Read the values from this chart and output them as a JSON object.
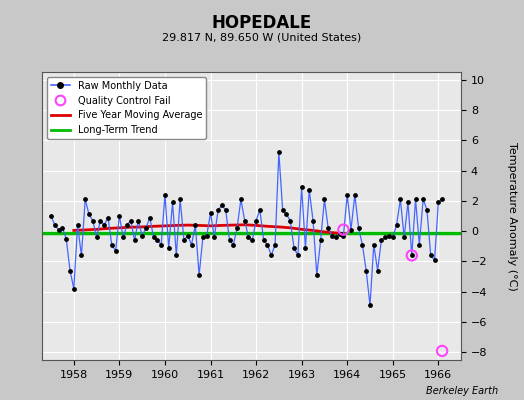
{
  "title": "HOPEDALE",
  "subtitle": "29.817 N, 89.650 W (United States)",
  "ylabel": "Temperature Anomaly (°C)",
  "credit": "Berkeley Earth",
  "ylim": [
    -8.5,
    10.5
  ],
  "yticks": [
    -8,
    -6,
    -4,
    -2,
    0,
    2,
    4,
    6,
    8,
    10
  ],
  "xlim": [
    1957.3,
    1966.5
  ],
  "bg_color": "#c8c8c8",
  "plot_bg_color": "#e8e8e8",
  "raw_color": "#4466ff",
  "dot_color": "#000000",
  "ma_color": "#dd0000",
  "trend_color": "#00bb00",
  "qc_color": "#ff44ff",
  "monthly_data": [
    [
      1957.5,
      1.0
    ],
    [
      1957.583,
      0.4
    ],
    [
      1957.667,
      0.1
    ],
    [
      1957.75,
      0.2
    ],
    [
      1957.833,
      -0.5
    ],
    [
      1957.917,
      -2.6
    ],
    [
      1958.0,
      -3.8
    ],
    [
      1958.083,
      0.4
    ],
    [
      1958.167,
      -1.6
    ],
    [
      1958.25,
      2.1
    ],
    [
      1958.333,
      1.1
    ],
    [
      1958.417,
      0.7
    ],
    [
      1958.5,
      -0.4
    ],
    [
      1958.583,
      0.7
    ],
    [
      1958.667,
      0.4
    ],
    [
      1958.75,
      0.9
    ],
    [
      1958.833,
      -0.9
    ],
    [
      1958.917,
      -1.3
    ],
    [
      1959.0,
      1.0
    ],
    [
      1959.083,
      -0.4
    ],
    [
      1959.167,
      0.4
    ],
    [
      1959.25,
      0.7
    ],
    [
      1959.333,
      -0.6
    ],
    [
      1959.417,
      0.7
    ],
    [
      1959.5,
      -0.3
    ],
    [
      1959.583,
      0.2
    ],
    [
      1959.667,
      0.9
    ],
    [
      1959.75,
      -0.4
    ],
    [
      1959.833,
      -0.6
    ],
    [
      1959.917,
      -0.9
    ],
    [
      1960.0,
      2.4
    ],
    [
      1960.083,
      -1.1
    ],
    [
      1960.167,
      1.9
    ],
    [
      1960.25,
      -1.6
    ],
    [
      1960.333,
      2.1
    ],
    [
      1960.417,
      -0.6
    ],
    [
      1960.5,
      -0.3
    ],
    [
      1960.583,
      -0.9
    ],
    [
      1960.667,
      0.4
    ],
    [
      1960.75,
      -2.9
    ],
    [
      1960.833,
      -0.4
    ],
    [
      1960.917,
      -0.3
    ],
    [
      1961.0,
      1.2
    ],
    [
      1961.083,
      -0.4
    ],
    [
      1961.167,
      1.4
    ],
    [
      1961.25,
      1.7
    ],
    [
      1961.333,
      1.4
    ],
    [
      1961.417,
      -0.6
    ],
    [
      1961.5,
      -0.9
    ],
    [
      1961.583,
      0.2
    ],
    [
      1961.667,
      2.1
    ],
    [
      1961.75,
      0.7
    ],
    [
      1961.833,
      -0.4
    ],
    [
      1961.917,
      -0.6
    ],
    [
      1962.0,
      0.7
    ],
    [
      1962.083,
      1.4
    ],
    [
      1962.167,
      -0.6
    ],
    [
      1962.25,
      -0.9
    ],
    [
      1962.333,
      -1.6
    ],
    [
      1962.417,
      -0.9
    ],
    [
      1962.5,
      5.2
    ],
    [
      1962.583,
      1.4
    ],
    [
      1962.667,
      1.1
    ],
    [
      1962.75,
      0.7
    ],
    [
      1962.833,
      -1.1
    ],
    [
      1962.917,
      -1.6
    ],
    [
      1963.0,
      2.9
    ],
    [
      1963.083,
      -1.1
    ],
    [
      1963.167,
      2.7
    ],
    [
      1963.25,
      0.7
    ],
    [
      1963.333,
      -2.9
    ],
    [
      1963.417,
      -0.6
    ],
    [
      1963.5,
      2.1
    ],
    [
      1963.583,
      0.2
    ],
    [
      1963.667,
      -0.3
    ],
    [
      1963.75,
      -0.4
    ],
    [
      1963.833,
      -0.2
    ],
    [
      1963.917,
      -0.3
    ],
    [
      1964.0,
      2.4
    ],
    [
      1964.083,
      0.1
    ],
    [
      1964.167,
      2.4
    ],
    [
      1964.25,
      0.2
    ],
    [
      1964.333,
      -0.9
    ],
    [
      1964.417,
      -2.6
    ],
    [
      1964.5,
      -4.9
    ],
    [
      1964.583,
      -0.9
    ],
    [
      1964.667,
      -2.6
    ],
    [
      1964.75,
      -0.6
    ],
    [
      1964.833,
      -0.4
    ],
    [
      1964.917,
      -0.3
    ],
    [
      1965.0,
      -0.4
    ],
    [
      1965.083,
      0.4
    ],
    [
      1965.167,
      2.1
    ],
    [
      1965.25,
      -0.4
    ],
    [
      1965.333,
      1.9
    ],
    [
      1965.417,
      -1.6
    ],
    [
      1965.5,
      2.1
    ],
    [
      1965.583,
      -0.9
    ],
    [
      1965.667,
      2.1
    ],
    [
      1965.75,
      1.4
    ],
    [
      1965.833,
      -1.6
    ],
    [
      1965.917,
      -1.9
    ],
    [
      1966.0,
      1.9
    ],
    [
      1966.083,
      2.1
    ]
  ],
  "qc_fail_points": [
    [
      1963.917,
      0.1
    ],
    [
      1965.417,
      -1.6
    ],
    [
      1966.083,
      -7.9
    ]
  ],
  "moving_avg_x": [
    1958.0,
    1958.25,
    1958.5,
    1958.75,
    1959.0,
    1959.25,
    1959.5,
    1959.75,
    1960.0,
    1960.25,
    1960.5,
    1960.75,
    1961.0,
    1961.25,
    1961.5,
    1961.75,
    1962.0,
    1962.25,
    1962.5,
    1962.75,
    1963.0,
    1963.25,
    1963.5,
    1963.75,
    1963.917
  ],
  "moving_avg_y": [
    0.05,
    0.08,
    0.12,
    0.18,
    0.22,
    0.26,
    0.28,
    0.32,
    0.35,
    0.38,
    0.4,
    0.38,
    0.35,
    0.38,
    0.4,
    0.42,
    0.38,
    0.32,
    0.28,
    0.22,
    0.12,
    0.05,
    -0.05,
    -0.12,
    -0.15
  ],
  "trend_y": -0.12,
  "xticks": [
    1958,
    1959,
    1960,
    1961,
    1962,
    1963,
    1964,
    1965,
    1966
  ]
}
